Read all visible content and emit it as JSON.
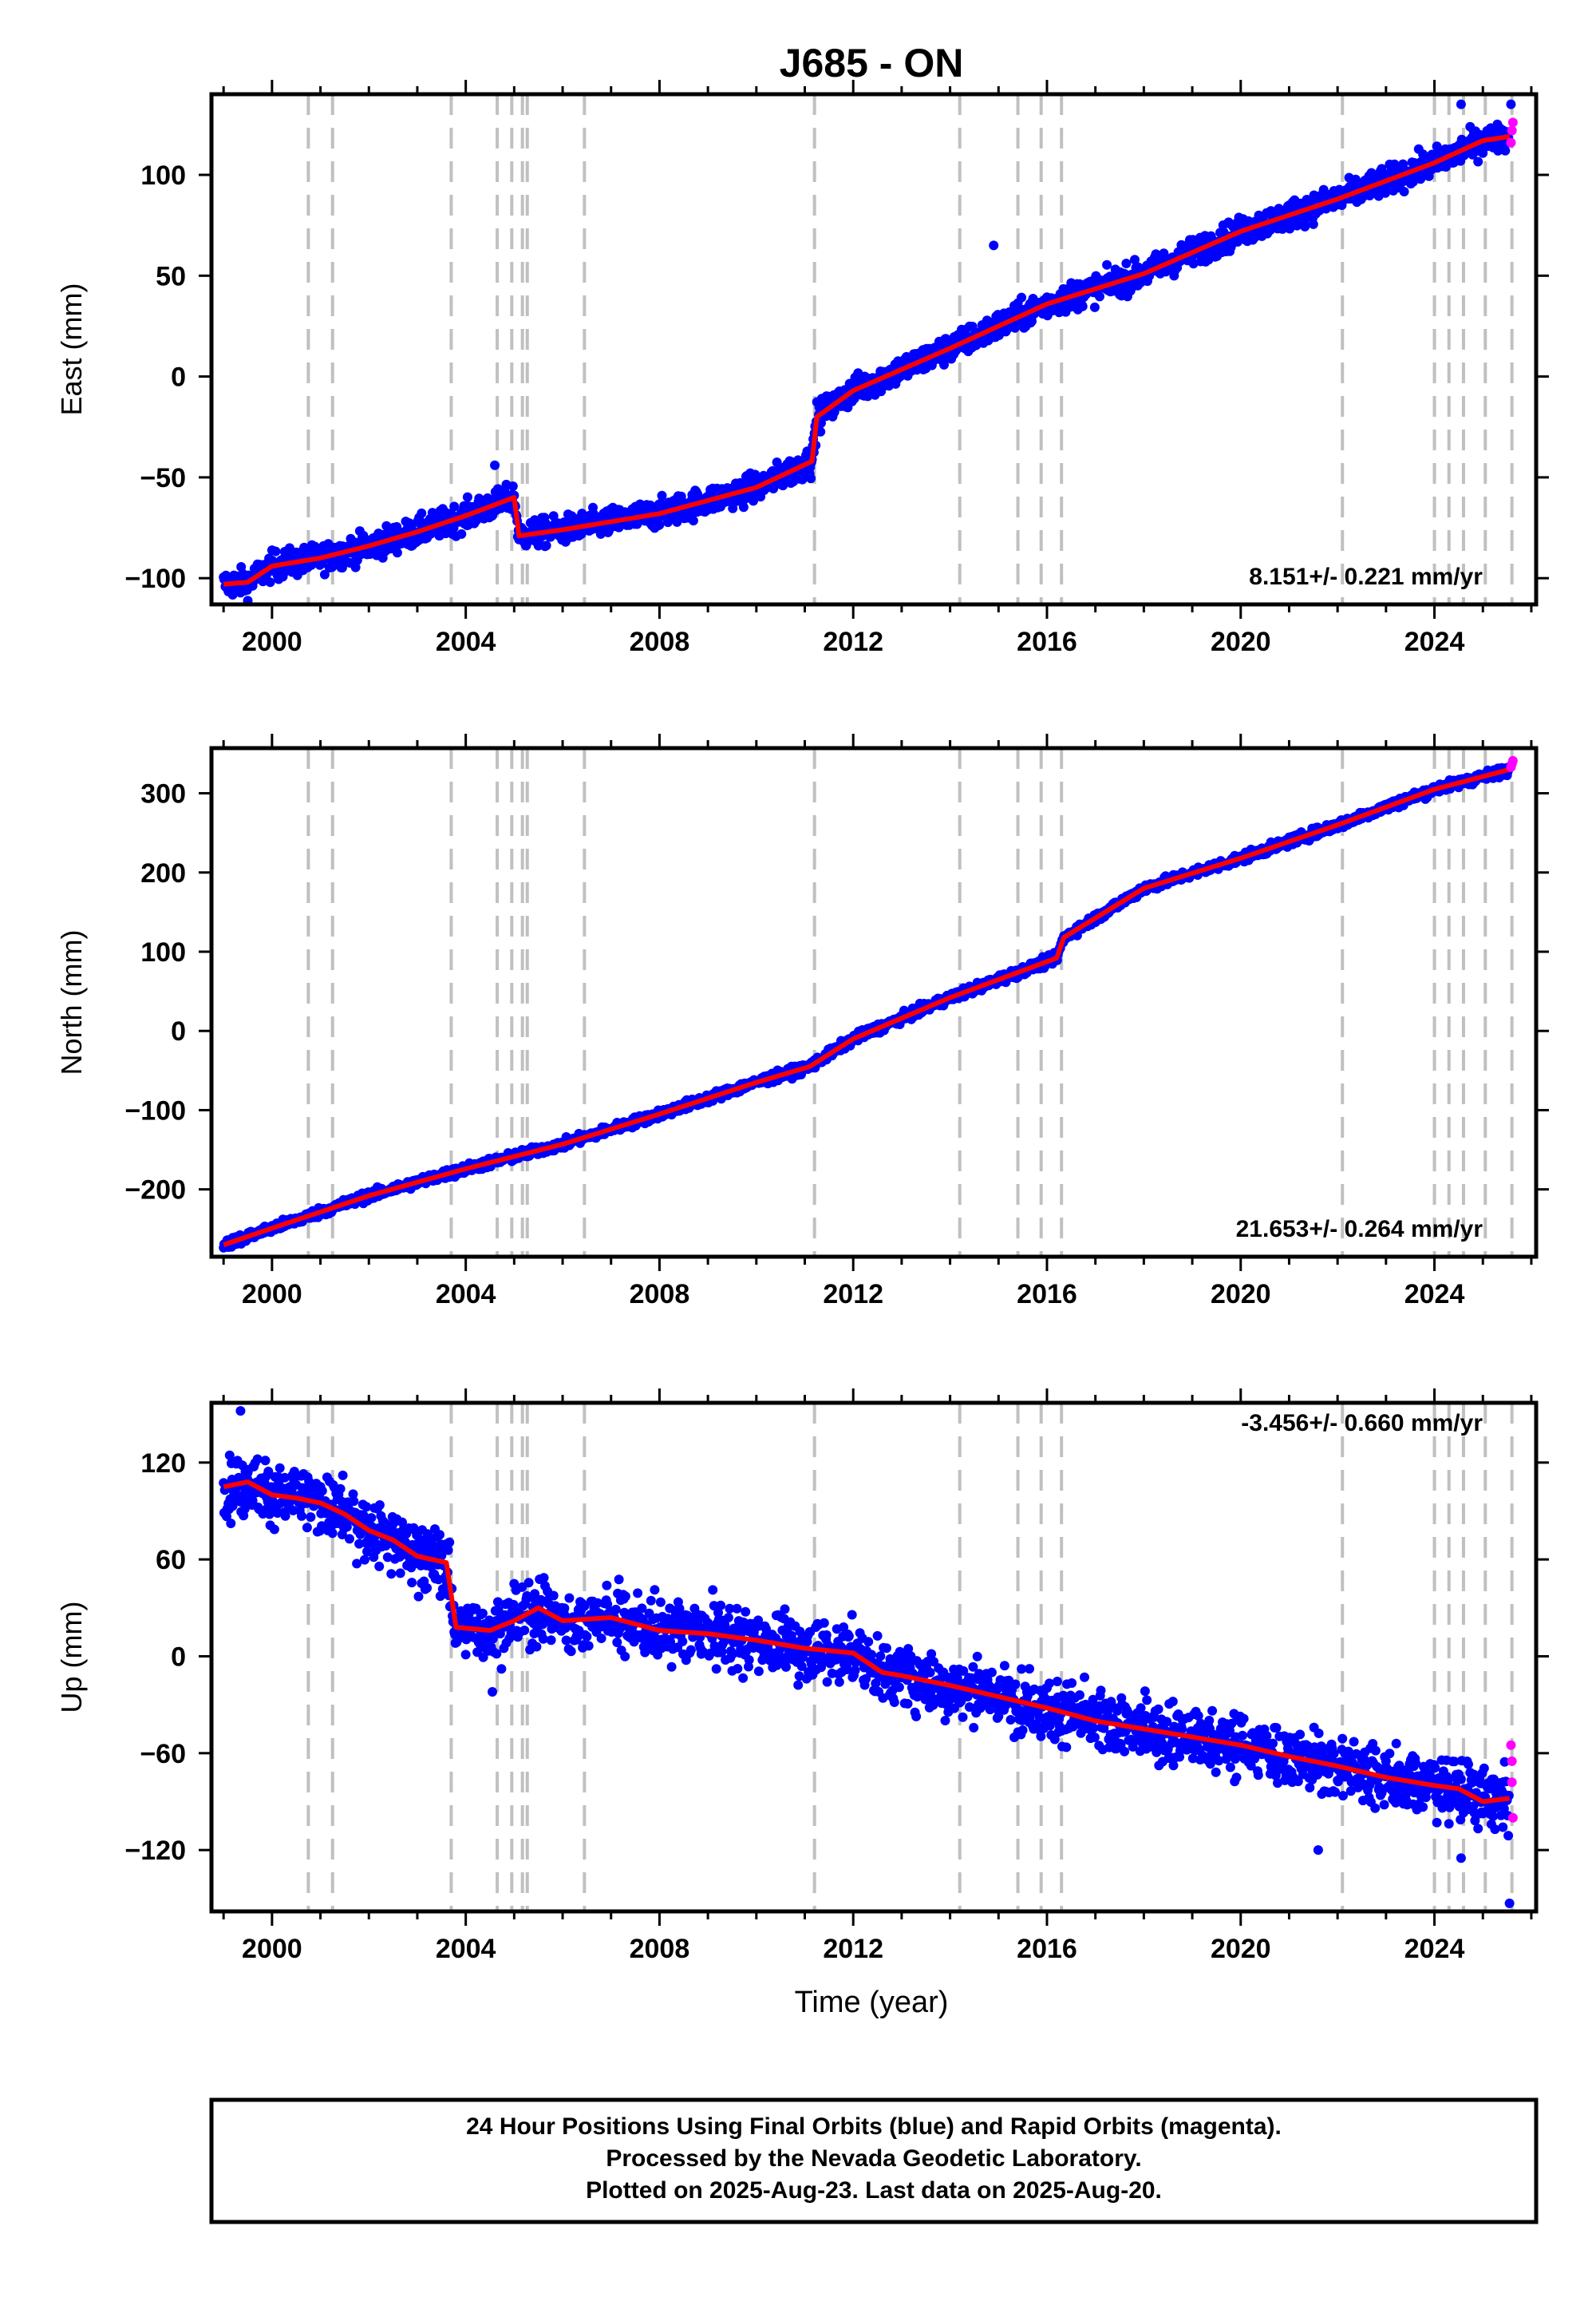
{
  "title": "J685 - ON",
  "x_axis": {
    "label": "Time (year)",
    "range": [
      1998.75,
      2026.1
    ],
    "ticks": [
      2000,
      2004,
      2008,
      2012,
      2016,
      2020,
      2024
    ],
    "tick_labels": [
      "2000",
      "2004",
      "2008",
      "2012",
      "2016",
      "2020",
      "2024"
    ]
  },
  "event_lines": [
    2000.75,
    2001.25,
    2003.7,
    2004.65,
    2004.95,
    2005.17,
    2005.27,
    2006.45,
    2011.2,
    2014.2,
    2015.4,
    2015.88,
    2016.3,
    2022.1,
    2024.0,
    2024.3,
    2024.6,
    2025.05,
    2025.6
  ],
  "colors": {
    "final": "#0000ff",
    "rapid": "#ff00ff",
    "model": "#ff0000",
    "event": "#c0c0c0"
  },
  "legend": {
    "line1": "24 Hour Positions Using Final Orbits (blue) and Rapid Orbits (magenta).",
    "line2": "Processed by the Nevada Geodetic Laboratory.",
    "line3": "Plotted on 2025-Aug-23. Last data on 2025-Aug-20."
  },
  "chart_data": [
    {
      "type": "scatter",
      "ylabel": "East (mm)",
      "ylim": [
        -113,
        140
      ],
      "yticks": [
        -100,
        -50,
        0,
        50,
        100
      ],
      "ytick_labels": [
        "−100",
        "−50",
        "0",
        "50",
        "100"
      ],
      "rate_label": "8.151+/- 0.221 mm/yr",
      "series": [
        {
          "x": [
            1999.0,
            1999.5,
            2000.0,
            2001.0,
            2002.0,
            2003.0,
            2004.0,
            2005.0,
            2005.1,
            2006.0,
            2008.0,
            2010.0,
            2011.15,
            2011.25,
            2012.0,
            2014.0,
            2016.0,
            2018.0,
            2020.0,
            2022.0,
            2024.0,
            2025.0,
            2025.55
          ],
          "y": [
            -103,
            -102,
            -94,
            -90,
            -84,
            -77,
            -69,
            -60,
            -79,
            -76,
            -68,
            -55,
            -42,
            -20,
            -7,
            14,
            36,
            51,
            72,
            88,
            106,
            117,
            119
          ]
        }
      ],
      "rapid": {
        "x": [
          2025.58,
          2025.6,
          2025.62
        ],
        "y": [
          116,
          122,
          126
        ]
      },
      "outliers": {
        "x": [
          2004.6,
          2014.9,
          2024.55,
          2025.58
        ],
        "y": [
          -44,
          65,
          135,
          135
        ]
      }
    },
    {
      "type": "scatter",
      "ylabel": "North (mm)",
      "ylim": [
        -285,
        357
      ],
      "yticks": [
        -200,
        -100,
        0,
        100,
        200,
        300
      ],
      "ytick_labels": [
        "−200",
        "−100",
        "0",
        "100",
        "200",
        "300"
      ],
      "rate_label": "21.653+/- 0.264 mm/yr",
      "series": [
        {
          "x": [
            1999.0,
            2000.0,
            2002.0,
            2004.0,
            2006.0,
            2008.0,
            2010.0,
            2011.1,
            2012.0,
            2014.0,
            2016.2,
            2016.35,
            2018.0,
            2020.0,
            2022.0,
            2024.0,
            2025.55
          ],
          "y": [
            -270,
            -249,
            -208,
            -174,
            -143,
            -105,
            -65,
            -45,
            -10,
            42,
            92,
            118,
            180,
            218,
            260,
            305,
            330
          ]
        }
      ],
      "rapid": {
        "x": [
          2025.58,
          2025.6,
          2025.62
        ],
        "y": [
          333,
          337,
          341
        ]
      },
      "outliers": {
        "x": [],
        "y": []
      }
    },
    {
      "type": "scatter",
      "ylabel": "Up (mm)",
      "ylim": [
        -158,
        157
      ],
      "yticks": [
        -120,
        -60,
        0,
        60,
        120
      ],
      "ytick_labels": [
        "−120",
        "−60",
        "0",
        "60",
        "120"
      ],
      "rate_label": "-3.456+/- 0.660 mm/yr",
      "series": [
        {
          "x": [
            1999.0,
            1999.5,
            2000.0,
            2000.5,
            2001.0,
            2001.5,
            2002.0,
            2002.5,
            2003.0,
            2003.6,
            2003.8,
            2004.5,
            2005.0,
            2005.5,
            2006.0,
            2007.0,
            2008.0,
            2009.0,
            2010.0,
            2011.0,
            2012.0,
            2012.6,
            2013.0,
            2014.0,
            2015.0,
            2016.0,
            2017.0,
            2018.0,
            2019.0,
            2020.0,
            2021.0,
            2022.0,
            2023.0,
            2024.0,
            2024.5,
            2025.0,
            2025.55
          ],
          "y": [
            105,
            108,
            100,
            98,
            95,
            88,
            78,
            72,
            62,
            58,
            18,
            16,
            22,
            30,
            22,
            24,
            16,
            14,
            10,
            5,
            2,
            -10,
            -12,
            -18,
            -25,
            -32,
            -40,
            -45,
            -50,
            -55,
            -62,
            -68,
            -75,
            -80,
            -82,
            -90,
            -88
          ]
        }
      ],
      "rapid": {
        "x": [
          2025.58,
          2025.6,
          2025.6,
          2025.62
        ],
        "y": [
          -55,
          -65,
          -78,
          -100
        ]
      },
      "outliers": {
        "x": [
          1999.35,
          2021.6,
          2025.55,
          2024.55,
          2004.55
        ],
        "y": [
          152,
          -120,
          -153,
          -125,
          -22
        ]
      }
    }
  ]
}
